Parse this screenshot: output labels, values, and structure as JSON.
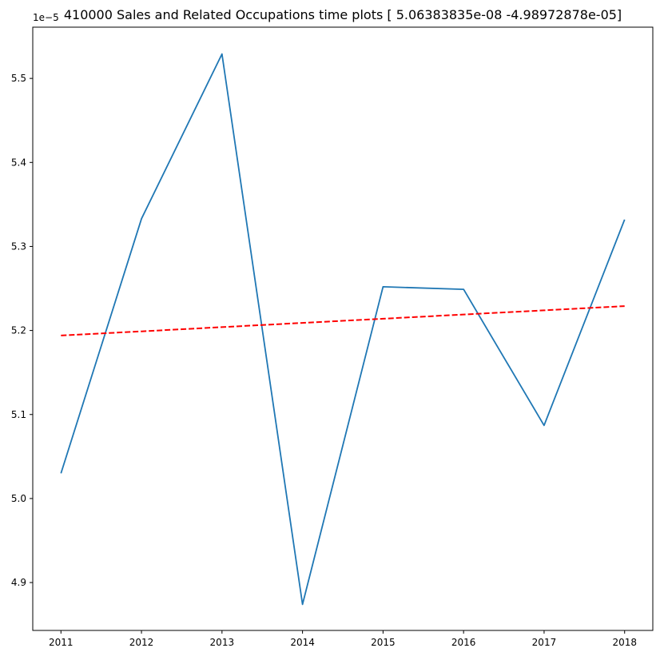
{
  "chart_data": {
    "type": "line",
    "title": "410000 Sales and Related Occupations time plots [ 5.06383835e-08 -4.98972878e-05]",
    "xlabel": "",
    "ylabel": "",
    "y_offset_label": "1e−5",
    "x": [
      2011,
      2012,
      2013,
      2014,
      2015,
      2016,
      2017,
      2018
    ],
    "x_tick_labels": [
      "2011",
      "2012",
      "2013",
      "2014",
      "2015",
      "2016",
      "2017",
      "2018"
    ],
    "y_tick_values": [
      4.9,
      5.0,
      5.1,
      5.2,
      5.3,
      5.4,
      5.5
    ],
    "y_tick_labels": [
      "4.9",
      "5.0",
      "5.1",
      "5.2",
      "5.3",
      "5.4",
      "5.5"
    ],
    "xlim": [
      2010.65,
      2018.35
    ],
    "ylim": [
      4.843,
      5.561
    ],
    "grid": false,
    "series": [
      {
        "values": [
          5.03,
          5.333,
          5.529,
          4.874,
          5.252,
          5.249,
          5.087,
          5.332
        ],
        "color": "#1f77b4",
        "style": "solid"
      },
      {
        "values": [
          5.194,
          5.199,
          5.204,
          5.209,
          5.214,
          5.219,
          5.224,
          5.229
        ],
        "color": "#ff0000",
        "style": "dashed"
      }
    ]
  }
}
